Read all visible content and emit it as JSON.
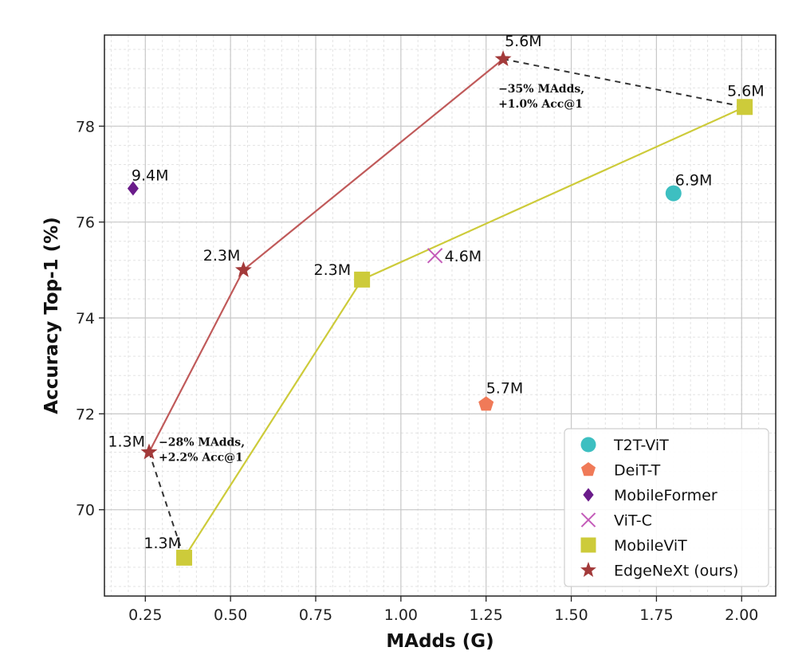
{
  "chart_data": {
    "type": "scatter",
    "xlabel": "MAdds (G)",
    "ylabel": "Accuracy Top-1 (%)",
    "xlim": [
      0.13,
      2.1
    ],
    "ylim": [
      68.2,
      79.9
    ],
    "xticks": [
      0.25,
      0.5,
      0.75,
      1.0,
      1.25,
      1.5,
      1.75,
      2.0
    ],
    "xtick_labels": [
      "0.25",
      "0.50",
      "0.75",
      "1.00",
      "1.25",
      "1.50",
      "1.75",
      "2.00"
    ],
    "yticks": [
      70,
      72,
      74,
      76,
      78
    ],
    "ytick_labels": [
      "70",
      "72",
      "74",
      "76",
      "78"
    ],
    "grid": true,
    "legend_position": "bottom-right",
    "series": [
      {
        "name": "T2T-ViT",
        "marker": "circle",
        "color": "#3dbfc1",
        "connected": false,
        "points": [
          {
            "x": 1.8,
            "y": 76.6,
            "label": "6.9M"
          }
        ]
      },
      {
        "name": "DeiT-T",
        "marker": "pentagon",
        "color": "#f07a58",
        "connected": false,
        "points": [
          {
            "x": 1.25,
            "y": 72.2,
            "label": "5.7M"
          }
        ]
      },
      {
        "name": "MobileFormer",
        "marker": "diamond",
        "color": "#6a1b8a",
        "connected": false,
        "points": [
          {
            "x": 0.214,
            "y": 76.7,
            "label": "9.4M"
          }
        ]
      },
      {
        "name": "ViT-C",
        "marker": "x",
        "color": "#c45bb9",
        "connected": false,
        "points": [
          {
            "x": 1.1,
            "y": 75.3,
            "label": "4.6M"
          }
        ]
      },
      {
        "name": "MobileViT",
        "marker": "square",
        "color": "#cdcb3a",
        "connected": true,
        "points": [
          {
            "x": 0.364,
            "y": 69.0,
            "label": "1.3M"
          },
          {
            "x": 0.886,
            "y": 74.8,
            "label": "2.3M"
          },
          {
            "x": 2.009,
            "y": 78.4,
            "label": "5.6M"
          }
        ]
      },
      {
        "name": "EdgeNeXt (ours)",
        "marker": "star",
        "color": "#a33a3a",
        "connected": true,
        "points": [
          {
            "x": 0.261,
            "y": 71.2,
            "label": "1.3M"
          },
          {
            "x": 0.538,
            "y": 75.0,
            "label": "2.3M"
          },
          {
            "x": 1.3,
            "y": 79.4,
            "label": "5.6M"
          }
        ]
      }
    ],
    "annotations": [
      {
        "lines": [
          "−28% MAdds,",
          "+2.2% Acc@1"
        ],
        "from": {
          "x": 0.261,
          "y": 71.2
        },
        "to": {
          "x": 0.364,
          "y": 69.0
        }
      },
      {
        "lines": [
          "−35% MAdds,",
          "+1.0% Acc@1"
        ],
        "from": {
          "x": 1.3,
          "y": 79.4
        },
        "to": {
          "x": 2.009,
          "y": 78.4
        }
      }
    ]
  }
}
